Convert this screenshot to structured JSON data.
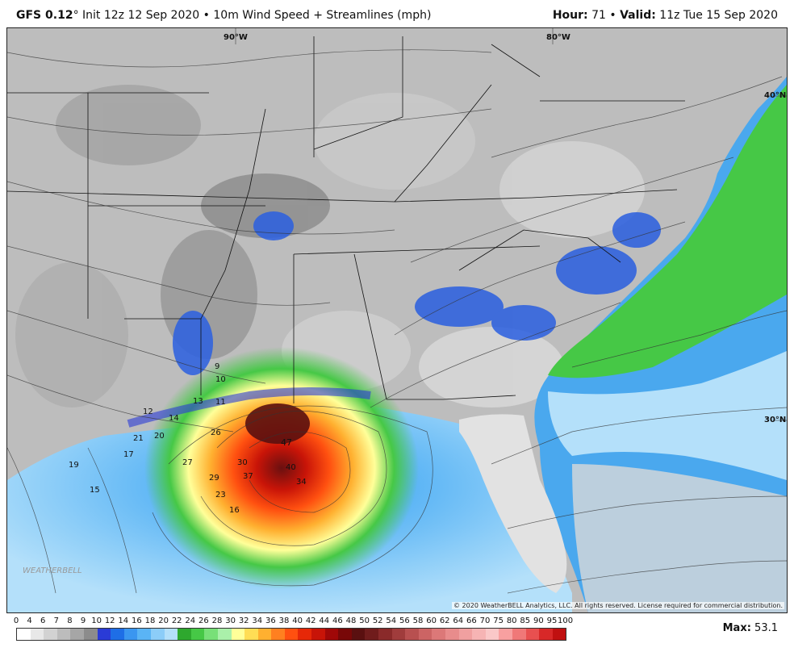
{
  "header": {
    "model": "GFS 0.12",
    "degree": "°",
    "init": "Init 12z 12 Sep 2020",
    "bullet": "•",
    "product": "10m Wind Speed + Streamlines (mph)",
    "hour_label": "Hour:",
    "hour_value": "71",
    "valid_label": "Valid:",
    "valid_value": "11z Tue 15 Sep 2020"
  },
  "map": {
    "lon_labels": [
      "90°W",
      "80°W"
    ],
    "lat_labels": [
      "40°N",
      "30°N"
    ],
    "max_label": "Max:",
    "max_value": "53.1",
    "copyright": "© 2020 WeatherBELL Analytics, LLC. All rights reserved. License required for commercial distribution.",
    "logo": "WEATHERBELL",
    "wind_labels": [
      {
        "v": "47"
      },
      {
        "v": "40"
      },
      {
        "v": "37"
      },
      {
        "v": "34"
      },
      {
        "v": "30"
      },
      {
        "v": "29"
      },
      {
        "v": "27"
      },
      {
        "v": "26"
      },
      {
        "v": "23"
      },
      {
        "v": "21"
      },
      {
        "v": "20"
      },
      {
        "v": "19"
      },
      {
        "v": "17"
      },
      {
        "v": "16"
      },
      {
        "v": "15"
      },
      {
        "v": "14"
      },
      {
        "v": "13"
      },
      {
        "v": "12"
      },
      {
        "v": "11"
      },
      {
        "v": "10"
      },
      {
        "v": "9"
      }
    ]
  },
  "legend": {
    "values": [
      "0",
      "4",
      "6",
      "7",
      "8",
      "9",
      "10",
      "12",
      "14",
      "16",
      "18",
      "20",
      "22",
      "24",
      "26",
      "28",
      "30",
      "32",
      "34",
      "36",
      "38",
      "40",
      "42",
      "44",
      "46",
      "48",
      "50",
      "52",
      "54",
      "56",
      "58",
      "60",
      "62",
      "64",
      "66",
      "70",
      "75",
      "80",
      "85",
      "90",
      "95",
      "100"
    ],
    "colors": [
      "#ffffff",
      "#e8e8e8",
      "#d2d2d2",
      "#bcbcbc",
      "#a6a6a6",
      "#8c8c8c",
      "#2a3bd6",
      "#1e6ee6",
      "#3a96f0",
      "#5ab4f5",
      "#8ccdf8",
      "#b4e0fa",
      "#2ea82e",
      "#46c846",
      "#78e078",
      "#aaf0aa",
      "#ffff99",
      "#ffdd55",
      "#ffb030",
      "#ff8020",
      "#ff5010",
      "#e62808",
      "#c81408",
      "#a00808",
      "#780808",
      "#5a1010",
      "#701c1c",
      "#8a2a2a",
      "#a03c3c",
      "#b85050",
      "#cc6464",
      "#dc7878",
      "#e88c8c",
      "#f0a0a0",
      "#f6b4b4",
      "#fac8c8",
      "#f8a0a0",
      "#f07878",
      "#e85050",
      "#d82828",
      "#c01010"
    ]
  }
}
